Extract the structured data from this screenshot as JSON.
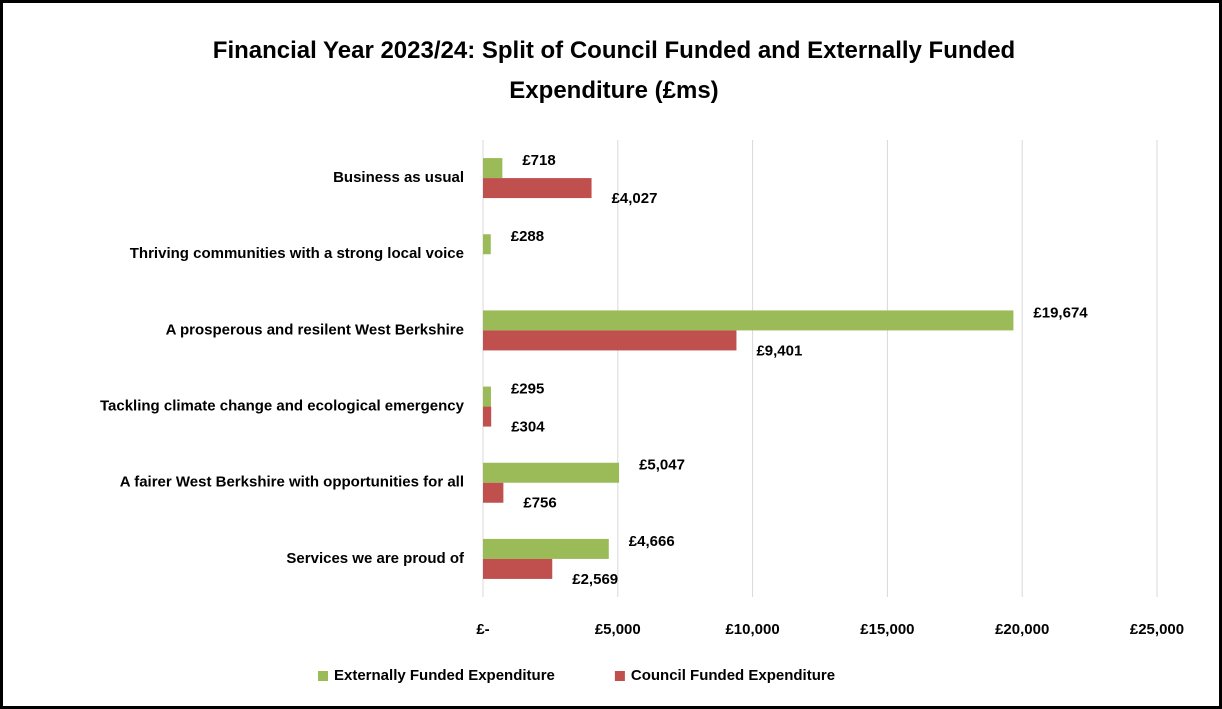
{
  "chart_data": {
    "type": "hbar",
    "title": "Financial Year 2023/24:  Split of Council Funded and Externally Funded Expenditure (£ms)",
    "categories": [
      "Business as usual",
      "Thriving communities with a strong local voice",
      "A prosperous and resilent West Berkshire",
      "Tackling climate change and ecological emergency",
      "A fairer West Berkshire with opportunities for all",
      "Services we are proud of"
    ],
    "series": [
      {
        "name": "Externally Funded Expenditure",
        "color": "#9bbb59",
        "values": [
          718,
          288,
          19674,
          295,
          5047,
          4666
        ],
        "value_labels": [
          "£718",
          "£288",
          "£19,674",
          "£295",
          "£5,047",
          "£4,666"
        ]
      },
      {
        "name": "Council Funded Expenditure",
        "color": "#c0504d",
        "values": [
          4027,
          null,
          9401,
          304,
          756,
          2569
        ],
        "value_labels": [
          "£4,027",
          null,
          "£9,401",
          "£304",
          "£756",
          "£2,569"
        ]
      }
    ],
    "xlim": [
      0,
      25000
    ],
    "xticks": [
      {
        "value": 0,
        "label": "£-"
      },
      {
        "value": 5000,
        "label": "£5,000"
      },
      {
        "value": 10000,
        "label": "£10,000"
      },
      {
        "value": 15000,
        "label": "£15,000"
      },
      {
        "value": 20000,
        "label": "£20,000"
      },
      {
        "value": 25000,
        "label": "£25,000"
      }
    ],
    "grid": true,
    "legend": "bottom"
  }
}
